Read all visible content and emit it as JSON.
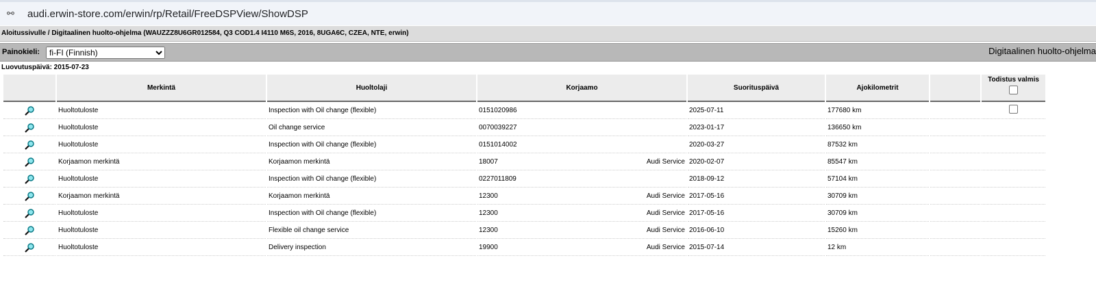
{
  "browser": {
    "url": "audi.erwin-store.com/erwin/rp/Retail/FreeDSPView/ShowDSP"
  },
  "breadcrumb": "Aloitussivulle / Digitaalinen huolto-ohjelma (WAUZZZ8U6GR012584, Q3 COD1.4 I4110 M6S, 2016, 8UGA6C, CZEA, NTE, erwin)",
  "language": {
    "label": "Painokieli:",
    "selected": "fi-FI (Finnish)"
  },
  "page_title": "Digitaalinen huolto-ohjelma",
  "delivery_date": "Luovutuspäivä: 2015-07-23",
  "table": {
    "headers": [
      "",
      "Merkintä",
      "Huoltolaji",
      "Korjaamo",
      "Suorituspäivä",
      "Ajokilometrit",
      "",
      "Todistus valmis"
    ],
    "rows": [
      {
        "merkinta": "Huoltotuloste",
        "huoltolaji": "Inspection with Oil change (flexible)",
        "korjaamo": "0151020986",
        "korjaamo_name": "",
        "date": "2025-07-11",
        "km": "177680 km",
        "checkbox": true
      },
      {
        "merkinta": "Huoltotuloste",
        "huoltolaji": "Oil change service",
        "korjaamo": "0070039227",
        "korjaamo_name": "",
        "date": "2023-01-17",
        "km": "136650 km",
        "checkbox": false
      },
      {
        "merkinta": "Huoltotuloste",
        "huoltolaji": "Inspection with Oil change (flexible)",
        "korjaamo": "0151014002",
        "korjaamo_name": "",
        "date": "2020-03-27",
        "km": "87532 km",
        "checkbox": false
      },
      {
        "merkinta": "Korjaamon merkintä",
        "huoltolaji": "Korjaamon merkintä",
        "korjaamo": "18007",
        "korjaamo_name": "Audi Service",
        "date": "2020-02-07",
        "km": "85547 km",
        "checkbox": false
      },
      {
        "merkinta": "Huoltotuloste",
        "huoltolaji": "Inspection with Oil change (flexible)",
        "korjaamo": "0227011809",
        "korjaamo_name": "",
        "date": "2018-09-12",
        "km": "57104 km",
        "checkbox": false
      },
      {
        "merkinta": "Korjaamon merkintä",
        "huoltolaji": "Korjaamon merkintä",
        "korjaamo": "12300",
        "korjaamo_name": "Audi Service",
        "date": "2017-05-16",
        "km": "30709 km",
        "checkbox": false
      },
      {
        "merkinta": "Huoltotuloste",
        "huoltolaji": "Inspection with Oil change (flexible)",
        "korjaamo": "12300",
        "korjaamo_name": "Audi Service",
        "date": "2017-05-16",
        "km": "30709 km",
        "checkbox": false
      },
      {
        "merkinta": "Huoltotuloste",
        "huoltolaji": "Flexible oil change service",
        "korjaamo": "12300",
        "korjaamo_name": "Audi Service",
        "date": "2016-06-10",
        "km": "15260 km",
        "checkbox": false
      },
      {
        "merkinta": "Huoltotuloste",
        "huoltolaji": "Delivery inspection",
        "korjaamo": "19900",
        "korjaamo_name": "Audi Service",
        "date": "2015-07-14",
        "km": "12 km",
        "checkbox": false
      }
    ]
  }
}
